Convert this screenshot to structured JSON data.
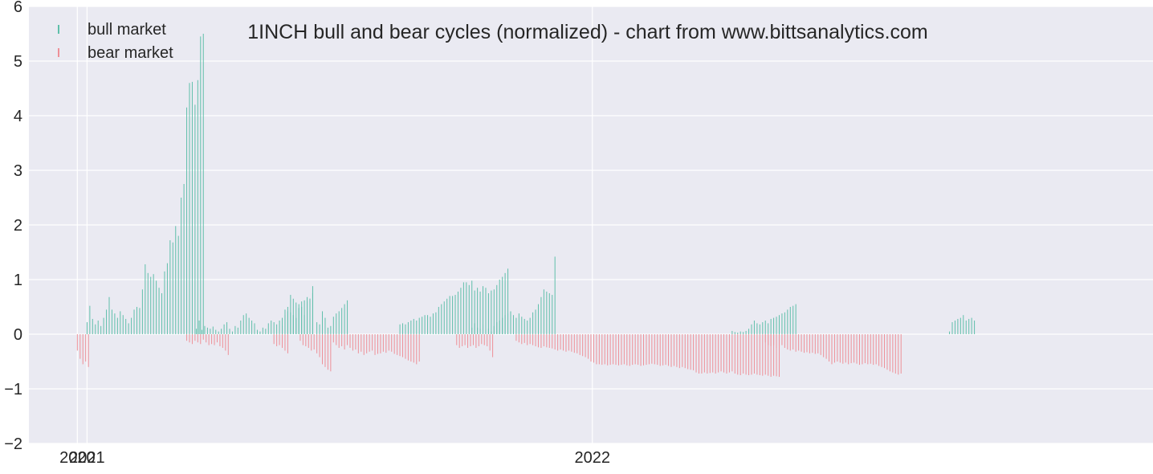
{
  "colors": {
    "background": "#ffffff",
    "plot_background": "#eaeaf2",
    "grid": "#ffffff",
    "bull": "#5fbfaa",
    "bear": "#ee8f97",
    "text": "#262626"
  },
  "chart_data": {
    "type": "bar",
    "title": "1INCH bull and bear cycles (normalized)  - chart from www.bittsanalytics.com",
    "xlabel": "",
    "ylabel": "",
    "ylim": [
      -2,
      6
    ],
    "xlim": [
      "2020-11-20",
      "2023-02-10"
    ],
    "grid": true,
    "legend_position": "top-left",
    "y_ticks": [
      {
        "value": -2,
        "label": "−2"
      },
      {
        "value": -1,
        "label": "−1"
      },
      {
        "value": 0,
        "label": "0"
      },
      {
        "value": 1,
        "label": "1"
      },
      {
        "value": 2,
        "label": "2"
      },
      {
        "value": 3,
        "label": "3"
      },
      {
        "value": 4,
        "label": "4"
      },
      {
        "value": 5,
        "label": "5"
      },
      {
        "value": 6,
        "label": "6"
      }
    ],
    "x_ticks": [
      {
        "value": "2020-12-25",
        "label": "2020"
      },
      {
        "value": "2021-01-01",
        "label": "2021"
      },
      {
        "value": "2022-01-01",
        "label": "2022"
      }
    ],
    "series": [
      {
        "name": "bull market",
        "color": "#5fbfaa",
        "segments": [
          {
            "start": "2021-01-01",
            "values": [
              0.22,
              0.52,
              0.28,
              0.18,
              0.25,
              0.15,
              0.3,
              0.45,
              0.68,
              0.45,
              0.38,
              0.3,
              0.42,
              0.35,
              0.28,
              0.2,
              0.3,
              0.45,
              0.5,
              0.48,
              0.82,
              1.28,
              1.12,
              1.05,
              1.1,
              0.98,
              0.85,
              0.75,
              1.15,
              1.3,
              1.72,
              1.68,
              1.98,
              1.8,
              2.5,
              2.75,
              4.15,
              4.6,
              4.62,
              4.2,
              4.65,
              5.45,
              5.5
            ]
          },
          {
            "start": "2021-03-21",
            "values": [
              0.1,
              0.25,
              0.08,
              0.15,
              0.12,
              0.1,
              0.14,
              0.08,
              0.05,
              0.1,
              0.18,
              0.22,
              0.1,
              0.05,
              0.15,
              0.12,
              0.25,
              0.35,
              0.38,
              0.3,
              0.25,
              0.2,
              0.08,
              0.05,
              0.12,
              0.1,
              0.2,
              0.25,
              0.22,
              0.18,
              0.25,
              0.3,
              0.45,
              0.5,
              0.72,
              0.65,
              0.58,
              0.55,
              0.6,
              0.62,
              0.68,
              0.65,
              0.75
            ]
          },
          {
            "start": "2021-05-22",
            "values": [
              0.15,
              0.35,
              0.42,
              0.4,
              0.35,
              0.3,
              0.48,
              0.5,
              0.35,
              0.6,
              0.65,
              0.88
            ]
          },
          {
            "start": "2021-06-16",
            "values": [
              0.22,
              0.18,
              0.42,
              0.3,
              0.12,
              0.15,
              0.32,
              0.38,
              0.42,
              0.48,
              0.55,
              0.62
            ]
          },
          {
            "start": "2021-08-15",
            "values": [
              0.18,
              0.2,
              0.18,
              0.22,
              0.25,
              0.28,
              0.25,
              0.3,
              0.32,
              0.35,
              0.35,
              0.32,
              0.38,
              0.4,
              0.5,
              0.55,
              0.6,
              0.65,
              0.7,
              0.7,
              0.72,
              0.78,
              0.85,
              0.95,
              0.95,
              0.9,
              0.98,
              0.8,
              0.85,
              0.78,
              0.88,
              0.85,
              0.75,
              0.8,
              0.82,
              0.9,
              1.0,
              1.05,
              1.12,
              1.2
            ]
          },
          {
            "start": "2021-10-06",
            "values": [
              0.12,
              0.2,
              0.12,
              0.1,
              0.18,
              0.08,
              0.1,
              0.05,
              0.15,
              0.22,
              0.25,
              0.3,
              0.35,
              0.38,
              0.42,
              0.35,
              0.3,
              0.38,
              0.32,
              0.28,
              0.25,
              0.3,
              0.4,
              0.45,
              0.55,
              0.68,
              0.82,
              0.78,
              0.75,
              0.72,
              1.42
            ]
          },
          {
            "start": "2022-04-12",
            "values": [
              0.06,
              0.04,
              0.03,
              0.05,
              0.04,
              0.06,
              0.1,
              0.18,
              0.25,
              0.2,
              0.18,
              0.22,
              0.25,
              0.2,
              0.28,
              0.3,
              0.32,
              0.35,
              0.38,
              0.4,
              0.45,
              0.5,
              0.52,
              0.55
            ]
          },
          {
            "start": "2022-09-16",
            "values": [
              0.05,
              0.22,
              0.25,
              0.28,
              0.3,
              0.35,
              0.25,
              0.28,
              0.3,
              0.25
            ]
          }
        ]
      },
      {
        "name": "bear market",
        "color": "#ee8f97",
        "segments": [
          {
            "start": "2020-12-25",
            "values": [
              -0.3,
              -0.45,
              -0.55,
              -0.5,
              -0.6
            ]
          },
          {
            "start": "2021-03-14",
            "values": [
              -0.12,
              -0.15,
              -0.18,
              -0.12,
              -0.15,
              -0.18,
              -0.1,
              -0.15,
              -0.2,
              -0.18,
              -0.2,
              -0.15,
              -0.22,
              -0.25,
              -0.3,
              -0.38
            ]
          },
          {
            "start": "2021-05-16",
            "values": [
              -0.18,
              -0.22,
              -0.2,
              -0.25,
              -0.3,
              -0.35
            ]
          },
          {
            "start": "2021-06-04",
            "values": [
              -0.12,
              -0.2,
              -0.22,
              -0.25,
              -0.3,
              -0.28,
              -0.35,
              -0.42,
              -0.55,
              -0.6,
              -0.65,
              -0.68
            ]
          },
          {
            "start": "2021-06-28",
            "values": [
              -0.15,
              -0.2,
              -0.25,
              -0.22,
              -0.28,
              -0.2,
              -0.25,
              -0.3,
              -0.28,
              -0.35,
              -0.32,
              -0.38,
              -0.35,
              -0.32,
              -0.3,
              -0.38,
              -0.36,
              -0.35,
              -0.32,
              -0.34,
              -0.3,
              -0.32,
              -0.36,
              -0.38,
              -0.4,
              -0.42,
              -0.45,
              -0.48,
              -0.5,
              -0.52,
              -0.55,
              -0.5
            ]
          },
          {
            "start": "2021-09-25",
            "values": [
              -0.2,
              -0.25,
              -0.22,
              -0.2,
              -0.25,
              -0.22,
              -0.2,
              -0.25,
              -0.22,
              -0.18,
              -0.2,
              -0.22,
              -0.3,
              -0.42
            ]
          },
          {
            "start": "2021-11-07",
            "values": [
              -0.12,
              -0.15,
              -0.18,
              -0.16,
              -0.2,
              -0.18,
              -0.2,
              -0.22,
              -0.24,
              -0.25,
              -0.22,
              -0.24,
              -0.25,
              -0.26,
              -0.28,
              -0.3,
              -0.28,
              -0.3,
              -0.32,
              -0.3,
              -0.32,
              -0.34,
              -0.35,
              -0.38,
              -0.4,
              -0.42,
              -0.45,
              -0.5,
              -0.52,
              -0.55,
              -0.55,
              -0.56,
              -0.55,
              -0.57,
              -0.56,
              -0.55,
              -0.56,
              -0.57,
              -0.56,
              -0.55,
              -0.57,
              -0.58,
              -0.56,
              -0.55,
              -0.56,
              -0.58,
              -0.57,
              -0.56,
              -0.55,
              -0.54,
              -0.55,
              -0.56,
              -0.58,
              -0.57,
              -0.56,
              -0.58,
              -0.6,
              -0.58,
              -0.6,
              -0.62,
              -0.6,
              -0.62,
              -0.64,
              -0.65,
              -0.66,
              -0.7,
              -0.72,
              -0.72,
              -0.7,
              -0.72,
              -0.71,
              -0.7,
              -0.72,
              -0.7,
              -0.68,
              -0.7,
              -0.72,
              -0.7,
              -0.68,
              -0.72,
              -0.74,
              -0.75,
              -0.72,
              -0.74,
              -0.75,
              -0.74,
              -0.72,
              -0.74,
              -0.75,
              -0.76,
              -0.74,
              -0.76,
              -0.78,
              -0.76,
              -0.77,
              -0.78
            ]
          },
          {
            "start": "2022-05-06",
            "values": [
              -0.15,
              -0.2,
              -0.22,
              -0.2,
              -0.25,
              -0.22,
              -0.2,
              -0.25,
              -0.28,
              -0.3,
              -0.28,
              -0.32,
              -0.3,
              -0.32,
              -0.34,
              -0.33,
              -0.35,
              -0.34,
              -0.36,
              -0.35,
              -0.38,
              -0.42,
              -0.45,
              -0.5,
              -0.55,
              -0.52,
              -0.5,
              -0.52,
              -0.54,
              -0.52,
              -0.55,
              -0.53,
              -0.52,
              -0.54,
              -0.56,
              -0.55,
              -0.53,
              -0.55,
              -0.54,
              -0.56,
              -0.55,
              -0.58,
              -0.6,
              -0.62,
              -0.65,
              -0.68,
              -0.7,
              -0.72,
              -0.74,
              -0.72
            ]
          }
        ]
      }
    ]
  }
}
